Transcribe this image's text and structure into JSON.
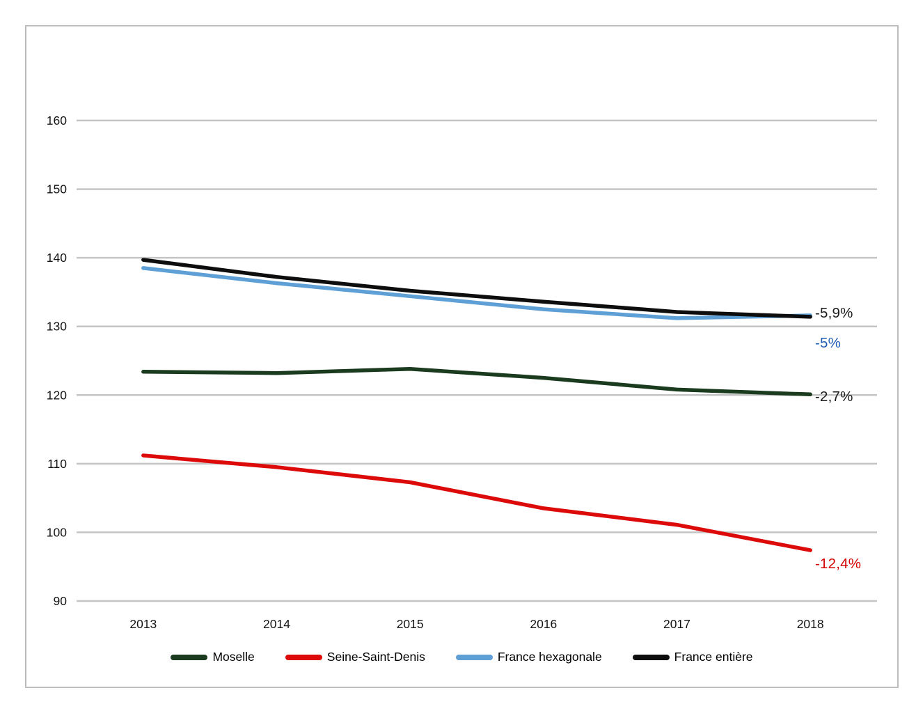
{
  "chart_data": {
    "type": "line",
    "x": [
      "2013",
      "2014",
      "2015",
      "2016",
      "2017",
      "2018"
    ],
    "series": [
      {
        "name": "Moselle",
        "color": "#1A3B1E",
        "values": [
          123.4,
          123.2,
          123.8,
          122.5,
          120.8,
          120.1
        ],
        "end_label": "-2,7%",
        "end_label_color": "#1A1A1A",
        "end_label_dy": 4
      },
      {
        "name": "Seine-Saint-Denis",
        "color": "#DD0A0A",
        "values": [
          111.2,
          109.5,
          107.3,
          103.5,
          101.1,
          97.4
        ],
        "end_label": "-12,4%",
        "end_label_color": "#D40000",
        "end_label_dy": 20
      },
      {
        "name": "France hexagonale",
        "color": "#5EA0D6",
        "values": [
          138.5,
          136.3,
          134.4,
          132.5,
          131.2,
          131.6
        ],
        "end_label": "-5%",
        "end_label_color": "#1F5BB5",
        "end_label_dy": 40
      },
      {
        "name": "France entière",
        "color": "#0D0D0D",
        "values": [
          139.7,
          137.2,
          135.2,
          133.6,
          132.1,
          131.4
        ],
        "end_label": "-5,9%",
        "end_label_color": "#1A1A1A",
        "end_label_dy": -5
      }
    ],
    "y_ticks": [
      160,
      150,
      140,
      130,
      120,
      110,
      100,
      90
    ],
    "ylim": [
      90,
      160
    ],
    "grid": true,
    "legend_position": "bottom",
    "tick_label_color": "#141414",
    "gridline_color": "#C4C4C4",
    "frame_border_color": "#BDBDBD"
  }
}
